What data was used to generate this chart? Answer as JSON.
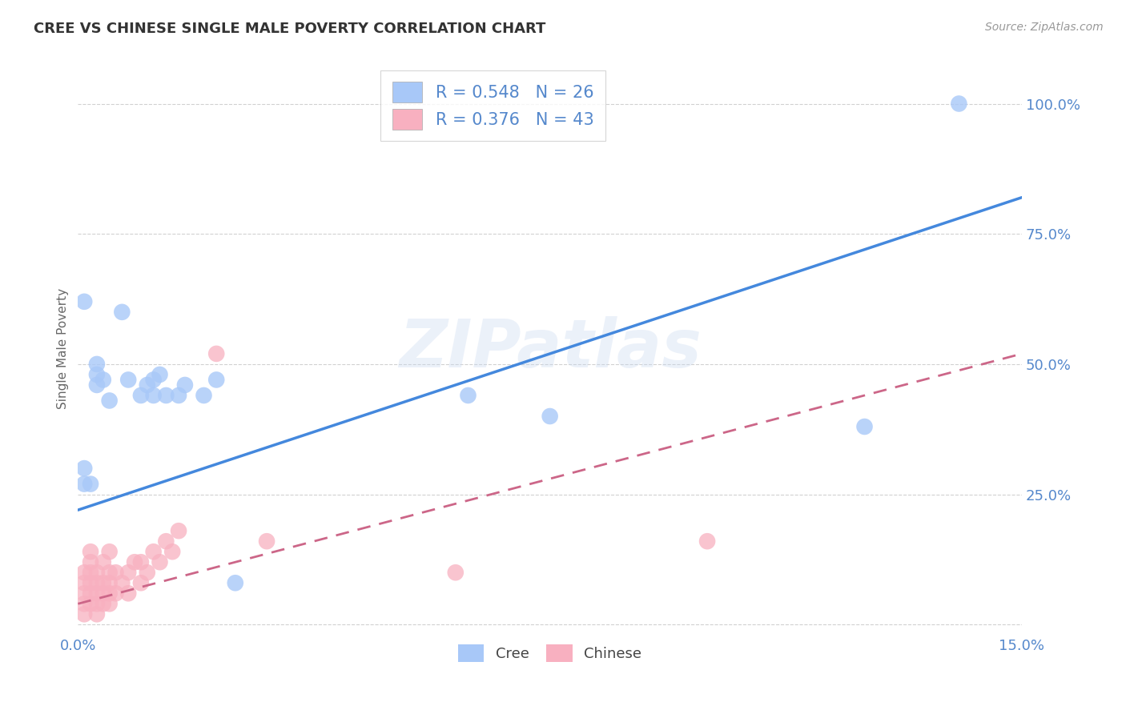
{
  "title": "CREE VS CHINESE SINGLE MALE POVERTY CORRELATION CHART",
  "source": "Source: ZipAtlas.com",
  "ylabel": "Single Male Poverty",
  "xlim": [
    0.0,
    0.15
  ],
  "ylim": [
    -0.02,
    1.08
  ],
  "cree_R": 0.548,
  "cree_N": 26,
  "chinese_R": 0.376,
  "chinese_N": 43,
  "cree_color": "#a8c8f8",
  "chinese_color": "#f8b0c0",
  "cree_line_color": "#4488dd",
  "chinese_line_color": "#cc6688",
  "background_color": "#ffffff",
  "grid_color": "#cccccc",
  "watermark": "ZIPatlas",
  "title_color": "#333333",
  "source_color": "#999999",
  "tick_color": "#5588cc",
  "label_color": "#666666",
  "cree_x": [
    0.001,
    0.001,
    0.002,
    0.003,
    0.003,
    0.004,
    0.005,
    0.007,
    0.008,
    0.01,
    0.011,
    0.012,
    0.012,
    0.013,
    0.014,
    0.016,
    0.017,
    0.02,
    0.022,
    0.025,
    0.062,
    0.075,
    0.125,
    0.14,
    0.001,
    0.003
  ],
  "cree_y": [
    0.27,
    0.3,
    0.27,
    0.46,
    0.48,
    0.47,
    0.43,
    0.6,
    0.47,
    0.44,
    0.46,
    0.44,
    0.47,
    0.48,
    0.44,
    0.44,
    0.46,
    0.44,
    0.47,
    0.08,
    0.44,
    0.4,
    0.38,
    1.0,
    0.62,
    0.5
  ],
  "chinese_x": [
    0.001,
    0.001,
    0.001,
    0.001,
    0.001,
    0.002,
    0.002,
    0.002,
    0.002,
    0.002,
    0.002,
    0.003,
    0.003,
    0.003,
    0.003,
    0.003,
    0.004,
    0.004,
    0.004,
    0.004,
    0.005,
    0.005,
    0.005,
    0.005,
    0.005,
    0.006,
    0.006,
    0.007,
    0.008,
    0.008,
    0.009,
    0.01,
    0.01,
    0.011,
    0.012,
    0.013,
    0.014,
    0.015,
    0.016,
    0.022,
    0.03,
    0.06,
    0.1
  ],
  "chinese_y": [
    0.02,
    0.04,
    0.06,
    0.08,
    0.1,
    0.04,
    0.06,
    0.08,
    0.1,
    0.12,
    0.14,
    0.02,
    0.04,
    0.06,
    0.08,
    0.1,
    0.04,
    0.06,
    0.08,
    0.12,
    0.04,
    0.06,
    0.08,
    0.1,
    0.14,
    0.06,
    0.1,
    0.08,
    0.06,
    0.1,
    0.12,
    0.08,
    0.12,
    0.1,
    0.14,
    0.12,
    0.16,
    0.14,
    0.18,
    0.52,
    0.16,
    0.1,
    0.16
  ],
  "cree_line_x": [
    0.0,
    0.15
  ],
  "cree_line_y": [
    0.22,
    0.82
  ],
  "chinese_line_x": [
    0.0,
    0.15
  ],
  "chinese_line_y": [
    0.04,
    0.52
  ]
}
